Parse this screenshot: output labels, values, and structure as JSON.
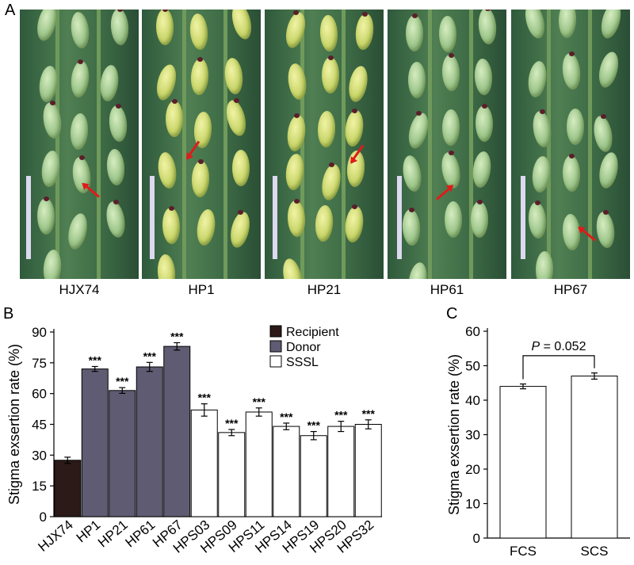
{
  "panel_letters": {
    "a": "A",
    "b": "B",
    "c": "C"
  },
  "photos": [
    {
      "label": "HJX74",
      "style": "green"
    },
    {
      "label": "HP1",
      "style": "yellow"
    },
    {
      "label": "HP21",
      "style": "yellow"
    },
    {
      "label": "HP61",
      "style": "green"
    },
    {
      "label": "HP67",
      "style": "green"
    }
  ],
  "chart_data": [
    {
      "type": "bar",
      "panel": "B",
      "ylabel": "Stigma exsertion rate (%)",
      "xlabel": "",
      "ylim": [
        0,
        90
      ],
      "yticks": [
        0,
        15,
        30,
        45,
        60,
        75,
        90
      ],
      "categories": [
        "HJX74",
        "HP1",
        "HP21",
        "HP61",
        "HP67",
        "HPS03",
        "HPS09",
        "HPS11",
        "HPS14",
        "HPS19",
        "HPS20",
        "HPS32"
      ],
      "values": [
        27.5,
        72,
        61.5,
        73,
        83,
        52,
        41,
        51,
        44,
        39.5,
        44,
        45
      ],
      "errors": [
        1.5,
        1.2,
        1.4,
        2.2,
        1.8,
        3.0,
        1.5,
        2.0,
        1.6,
        2.0,
        2.5,
        2.2
      ],
      "groups": [
        "Recipient",
        "Donor",
        "Donor",
        "Donor",
        "Donor",
        "SSSL",
        "SSSL",
        "SSSL",
        "SSSL",
        "SSSL",
        "SSSL",
        "SSSL"
      ],
      "significance": [
        "",
        "***",
        "***",
        "***",
        "***",
        "***",
        "***",
        "***",
        "***",
        "***",
        "***",
        "***"
      ],
      "legend": [
        {
          "name": "Recipient",
          "color": "#2b1a17"
        },
        {
          "name": "Donor",
          "color": "#5f5b72"
        },
        {
          "name": "SSSL",
          "color": "#ffffff"
        }
      ],
      "legend_position": "top-right",
      "grid": false
    },
    {
      "type": "bar",
      "panel": "C",
      "ylabel": "Stigma exsertion rate (%)",
      "xlabel": "",
      "ylim": [
        0,
        60
      ],
      "yticks": [
        0,
        10,
        20,
        30,
        40,
        50,
        60
      ],
      "categories": [
        "FCS",
        "SCS"
      ],
      "values": [
        44,
        47
      ],
      "errors": [
        0.7,
        0.9
      ],
      "color": "#ffffff",
      "annotation": {
        "italic": "P",
        "rest": " = 0.052"
      },
      "grid": false
    }
  ]
}
